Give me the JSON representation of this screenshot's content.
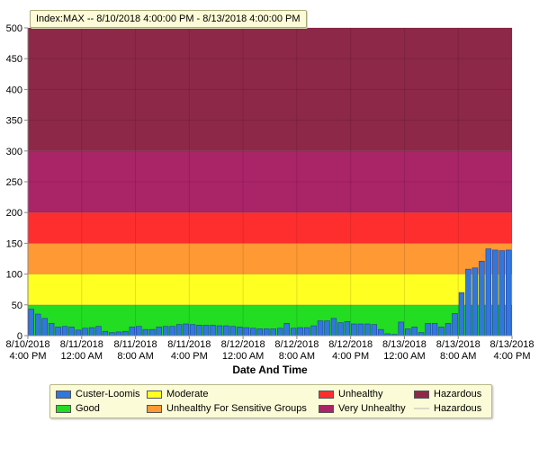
{
  "chart_data": {
    "type": "bar",
    "title": "Index:MAX -- 8/10/2018 4:00:00 PM  -  8/13/2018 4:00:00 PM",
    "xlabel": "Date And Time",
    "ylabel": "",
    "ylim": [
      0,
      500
    ],
    "yticks": [
      0,
      50,
      100,
      150,
      200,
      250,
      300,
      350,
      400,
      450,
      500
    ],
    "x_range_hours": [
      0,
      72
    ],
    "xtick_hours": [
      0,
      8,
      16,
      24,
      32,
      40,
      48,
      56,
      64,
      72
    ],
    "xtick_labels": [
      [
        "8/10/2018",
        "4:00 PM"
      ],
      [
        "8/11/2018",
        "12:00 AM"
      ],
      [
        "8/11/2018",
        "8:00 AM"
      ],
      [
        "8/11/2018",
        "4:00 PM"
      ],
      [
        "8/12/2018",
        "12:00 AM"
      ],
      [
        "8/12/2018",
        "8:00 AM"
      ],
      [
        "8/12/2018",
        "4:00 PM"
      ],
      [
        "8/13/2018",
        "12:00 AM"
      ],
      [
        "8/13/2018",
        "8:00 AM"
      ],
      [
        "8/13/2018",
        "4:00 PM"
      ]
    ],
    "bands": [
      {
        "name": "Good",
        "from": 0,
        "to": 50,
        "color": "#22dd22"
      },
      {
        "name": "Moderate",
        "from": 50,
        "to": 100,
        "color": "#ffff22"
      },
      {
        "name": "Unhealthy For Sensitive Groups",
        "from": 100,
        "to": 150,
        "color": "#ff9933"
      },
      {
        "name": "Unhealthy",
        "from": 150,
        "to": 200,
        "color": "#ff2e2e"
      },
      {
        "name": "Very Unhealthy",
        "from": 200,
        "to": 300,
        "color": "#aa2468"
      },
      {
        "name": "Hazardous",
        "from": 300,
        "to": 500,
        "color": "#8e2848"
      }
    ],
    "series": [
      {
        "name": "Custer-Loomis",
        "color": "#3377dd",
        "values": [
          43,
          35,
          28,
          20,
          14,
          15,
          14,
          9,
          12,
          13,
          15,
          7,
          5,
          6,
          7,
          14,
          15,
          10,
          10,
          14,
          15,
          15,
          18,
          19,
          18,
          17,
          17,
          17,
          16,
          16,
          15,
          14,
          13,
          12,
          11,
          11,
          11,
          12,
          20,
          12,
          13,
          13,
          16,
          24,
          24,
          28,
          21,
          23,
          19,
          19,
          19,
          18,
          10,
          3,
          2,
          22,
          11,
          14,
          5,
          20,
          20,
          14,
          20,
          36,
          70,
          108,
          110,
          121,
          141,
          139,
          138,
          139
        ]
      }
    ],
    "legend": [
      {
        "label": "Custer-Loomis",
        "kind": "box",
        "color": "#3377dd"
      },
      {
        "label": "Moderate",
        "kind": "box",
        "color": "#ffff22"
      },
      {
        "label": "Unhealthy",
        "kind": "box",
        "color": "#ff2e2e"
      },
      {
        "label": "Hazardous",
        "kind": "box",
        "color": "#8e2848"
      },
      {
        "label": "Good",
        "kind": "box",
        "color": "#22dd22"
      },
      {
        "label": "Unhealthy For Sensitive Groups",
        "kind": "box",
        "color": "#ff9933"
      },
      {
        "label": "Very Unhealthy",
        "kind": "box",
        "color": "#aa2468"
      },
      {
        "label": "Hazardous",
        "kind": "line",
        "color": "#d9d9c6"
      }
    ],
    "legend_placement": "bottom",
    "grid": true
  }
}
